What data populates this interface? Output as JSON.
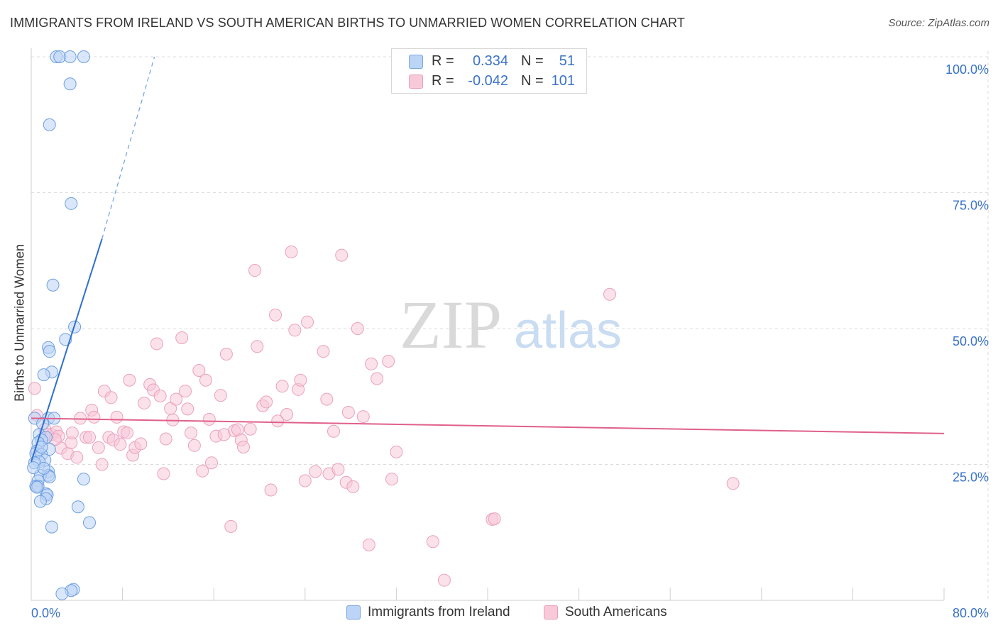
{
  "title": "IMMIGRANTS FROM IRELAND VS SOUTH AMERICAN BIRTHS TO UNMARRIED WOMEN CORRELATION CHART",
  "source": "Source: ZipAtlas.com",
  "watermark": {
    "zip": "ZIP",
    "atlas": "atlas"
  },
  "legend": {
    "rows": [
      {
        "r_label": "R =",
        "r_value": "0.334",
        "n_label": "N =",
        "n_value": "51",
        "color": "#5b8fd6",
        "fill": "#bcd4f5"
      },
      {
        "r_label": "R =",
        "r_value": "-0.042",
        "n_label": "N =",
        "n_value": "101",
        "color": "#e07fa0",
        "fill": "#f8c9d8"
      }
    ],
    "value_color": "#3a72c8"
  },
  "bottom_legend": [
    {
      "label": "Immigrants from Ireland",
      "fill": "#bcd4f5",
      "stroke": "#7aa6e0"
    },
    {
      "label": "South Americans",
      "fill": "#f8c9d8",
      "stroke": "#e9a0b8"
    }
  ],
  "chart_data": {
    "type": "scatter",
    "title": "IMMIGRANTS FROM IRELAND VS SOUTH AMERICAN BIRTHS TO UNMARRIED WOMEN CORRELATION CHART",
    "xlabel": "",
    "ylabel": "Births to Unmarried Women",
    "xlim": [
      0,
      80
    ],
    "ylim": [
      0,
      100
    ],
    "x_tick_labels": [
      "0.0%",
      "80.0%"
    ],
    "y_ticks": [
      25,
      50,
      75,
      100
    ],
    "y_tick_labels": [
      "25.0%",
      "50.0%",
      "75.0%",
      "100.0%"
    ],
    "grid": true,
    "legend_position": "top-center",
    "series": [
      {
        "name": "Immigrants from Ireland",
        "color": "#4a86d8",
        "fill": "#bcd4f5",
        "trend": {
          "x0": 0,
          "y0": 25.5,
          "x1": 6.2,
          "y1": 66.5,
          "dashed_to": {
            "x": 10.8,
            "y": 100
          }
        },
        "points": [
          [
            2.2,
            100
          ],
          [
            2.5,
            100
          ],
          [
            3.4,
            100
          ],
          [
            4.6,
            100
          ],
          [
            3.4,
            95
          ],
          [
            1.6,
            87.5
          ],
          [
            3.5,
            73
          ],
          [
            1.9,
            58
          ],
          [
            3.8,
            50.3
          ],
          [
            3.0,
            48
          ],
          [
            1.5,
            46.5
          ],
          [
            1.6,
            45.8
          ],
          [
            1.8,
            42
          ],
          [
            1.1,
            41.5
          ],
          [
            0.3,
            33.5
          ],
          [
            1.5,
            33.5
          ],
          [
            2.0,
            33.5
          ],
          [
            1.0,
            32.5
          ],
          [
            0.7,
            30.5
          ],
          [
            1.3,
            30
          ],
          [
            0.9,
            29.5
          ],
          [
            0.6,
            29
          ],
          [
            1.6,
            27.8
          ],
          [
            0.5,
            27.5
          ],
          [
            0.4,
            27
          ],
          [
            0.9,
            26.8
          ],
          [
            1.2,
            25.8
          ],
          [
            0.7,
            25.5
          ],
          [
            0.3,
            25.3
          ],
          [
            1.5,
            23.7
          ],
          [
            1.5,
            23
          ],
          [
            0.8,
            23
          ],
          [
            1.6,
            22.7
          ],
          [
            4.6,
            22.3
          ],
          [
            0.6,
            22
          ],
          [
            0.4,
            21
          ],
          [
            0.6,
            21
          ],
          [
            1.3,
            19.6
          ],
          [
            1.4,
            19.4
          ],
          [
            1.3,
            18.7
          ],
          [
            0.8,
            18.2
          ],
          [
            4.1,
            17.2
          ],
          [
            5.1,
            14.3
          ],
          [
            1.8,
            13.5
          ],
          [
            3.7,
            2.0
          ],
          [
            3.5,
            1.8
          ],
          [
            2.7,
            1.2
          ],
          [
            0.2,
            24.4
          ],
          [
            0.5,
            20.8
          ],
          [
            0.9,
            28.2
          ],
          [
            1.1,
            24.3
          ]
        ]
      },
      {
        "name": "South Americans",
        "color": "#e0608a",
        "fill": "#f8c9d8",
        "trend": {
          "x0": 0,
          "y0": 33.5,
          "x1": 80,
          "y1": 30.7
        },
        "points": [
          [
            0.3,
            39
          ],
          [
            0.5,
            34
          ],
          [
            1.2,
            31.5
          ],
          [
            1.8,
            30.5
          ],
          [
            2.2,
            31
          ],
          [
            2.4,
            30.2
          ],
          [
            2.6,
            28
          ],
          [
            3.2,
            27
          ],
          [
            3.5,
            29
          ],
          [
            3.6,
            30.8
          ],
          [
            4.0,
            26.3
          ],
          [
            4.3,
            33.5
          ],
          [
            4.8,
            30
          ],
          [
            5.1,
            30
          ],
          [
            5.3,
            35
          ],
          [
            5.5,
            33.7
          ],
          [
            5.9,
            28.1
          ],
          [
            6.2,
            25
          ],
          [
            6.4,
            38.5
          ],
          [
            6.8,
            30
          ],
          [
            7.0,
            37.3
          ],
          [
            7.2,
            29.5
          ],
          [
            7.5,
            33.7
          ],
          [
            7.8,
            28.7
          ],
          [
            8.1,
            31
          ],
          [
            8.4,
            30.8
          ],
          [
            8.6,
            40.5
          ],
          [
            8.9,
            26.7
          ],
          [
            9.1,
            28.1
          ],
          [
            9.6,
            28.8
          ],
          [
            9.9,
            36.3
          ],
          [
            10.4,
            39.7
          ],
          [
            10.7,
            38.7
          ],
          [
            11.0,
            47.2
          ],
          [
            11.3,
            37.6
          ],
          [
            11.6,
            23.3
          ],
          [
            11.8,
            29.7
          ],
          [
            12.2,
            35.3
          ],
          [
            12.4,
            33.2
          ],
          [
            12.7,
            37
          ],
          [
            13.2,
            48.3
          ],
          [
            13.5,
            38.5
          ],
          [
            13.7,
            35.2
          ],
          [
            14.0,
            30.8
          ],
          [
            14.3,
            28.5
          ],
          [
            14.7,
            42.3
          ],
          [
            15.0,
            23.8
          ],
          [
            15.3,
            40.5
          ],
          [
            15.6,
            33.3
          ],
          [
            15.8,
            25.3
          ],
          [
            16.2,
            30.2
          ],
          [
            16.6,
            37.7
          ],
          [
            16.9,
            30.5
          ],
          [
            17.1,
            45.3
          ],
          [
            17.5,
            13.6
          ],
          [
            17.8,
            31.2
          ],
          [
            18.1,
            31.4
          ],
          [
            18.4,
            29.5
          ],
          [
            18.6,
            28.2
          ],
          [
            19.2,
            31.5
          ],
          [
            19.6,
            60.7
          ],
          [
            19.8,
            46.7
          ],
          [
            20.3,
            35.8
          ],
          [
            20.6,
            36.5
          ],
          [
            21.0,
            20.3
          ],
          [
            21.4,
            52.5
          ],
          [
            21.6,
            33.0
          ],
          [
            22.0,
            39.4
          ],
          [
            22.4,
            34.2
          ],
          [
            22.8,
            64.1
          ],
          [
            23.1,
            49.7
          ],
          [
            23.4,
            38.8
          ],
          [
            23.6,
            40.5
          ],
          [
            24.0,
            22
          ],
          [
            24.2,
            51.2
          ],
          [
            24.9,
            23.7
          ],
          [
            25.6,
            45.8
          ],
          [
            25.9,
            37
          ],
          [
            26.1,
            23.3
          ],
          [
            26.5,
            31.1
          ],
          [
            26.9,
            24.1
          ],
          [
            27.2,
            63.5
          ],
          [
            27.6,
            21.7
          ],
          [
            27.8,
            34.6
          ],
          [
            28.2,
            20.9
          ],
          [
            28.6,
            50
          ],
          [
            29.1,
            33.8
          ],
          [
            29.6,
            10.2
          ],
          [
            29.8,
            43.5
          ],
          [
            30.3,
            40.8
          ],
          [
            31.3,
            44
          ],
          [
            31.6,
            22.3
          ],
          [
            32.0,
            27.3
          ],
          [
            35.2,
            10.8
          ],
          [
            36.2,
            3.7
          ],
          [
            40.4,
            14.9
          ],
          [
            40.6,
            15
          ],
          [
            50.7,
            56.3
          ],
          [
            61.5,
            21.5
          ],
          [
            1.4,
            30.5
          ],
          [
            2.1,
            29.6
          ]
        ]
      }
    ]
  }
}
